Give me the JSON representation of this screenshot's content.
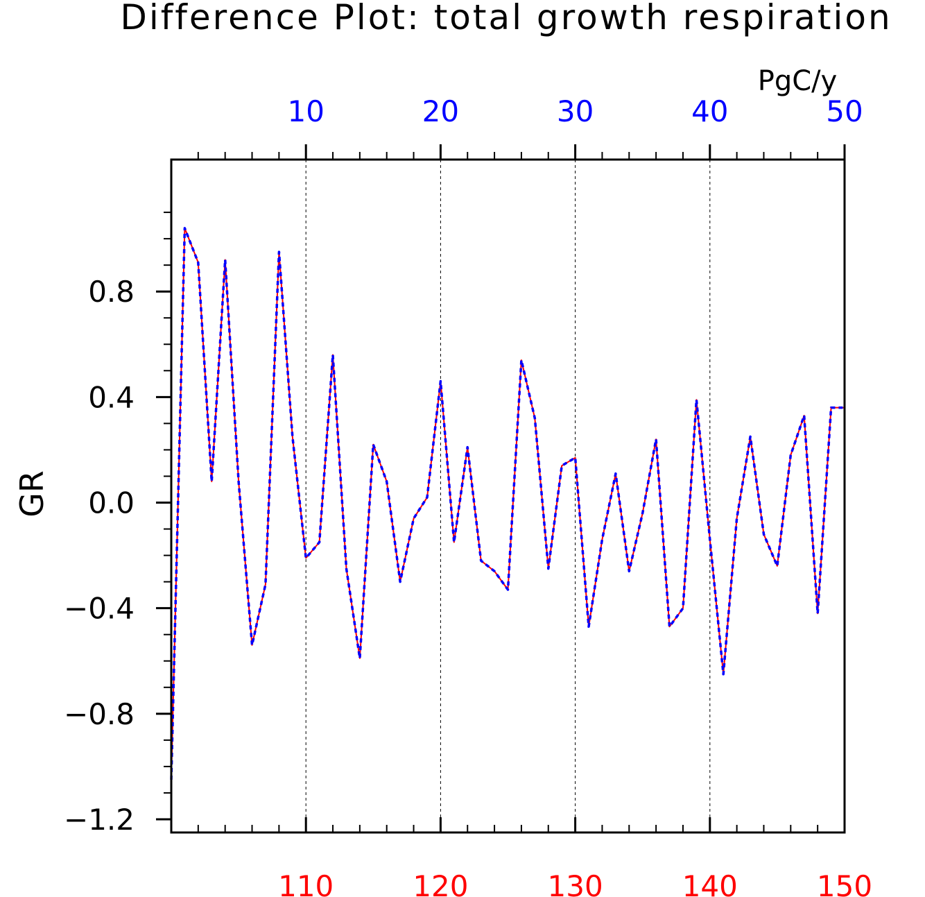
{
  "chart_data": {
    "type": "line",
    "title": "Difference Plot: total growth respiration",
    "units": "PgC/y",
    "ylabel": "GR",
    "xlim": [
      100,
      150
    ],
    "ylim": [
      -1.25,
      1.3
    ],
    "x_bottom": {
      "ticks": [
        110,
        120,
        130,
        140,
        150
      ],
      "tick_labels": [
        "110",
        "120",
        "130",
        "140",
        "150"
      ],
      "color": "#ff0000"
    },
    "x_top": {
      "ticks": [
        10,
        20,
        30,
        40,
        50
      ],
      "tick_labels": [
        "10",
        "20",
        "30",
        "40",
        "50"
      ],
      "color": "#0000ff"
    },
    "y_ticks": [
      0.8,
      0.4,
      0.0,
      -0.4,
      -0.8,
      -1.2
    ],
    "y_tick_labels": [
      "0.8",
      "0.4",
      "0.0",
      "−0.4",
      "−0.8",
      "−1.2"
    ],
    "grid": "vertical dashed at major x ticks",
    "series": [
      {
        "color": "#ff0000",
        "style": "solid",
        "axis": "bottom",
        "x": [
          100,
          101,
          102,
          103,
          104,
          105,
          106,
          107,
          108,
          109,
          110,
          111,
          112,
          113,
          114,
          115,
          116,
          117,
          118,
          119,
          120,
          121,
          122,
          123,
          124,
          125,
          126,
          127,
          128,
          129,
          130,
          131,
          132,
          133,
          134,
          135,
          136,
          137,
          138,
          139,
          140,
          141,
          142,
          143,
          144,
          145,
          146,
          147,
          148,
          149,
          150
        ],
        "values": [
          -1.05,
          1.04,
          0.91,
          0.08,
          0.92,
          0.08,
          -0.54,
          -0.31,
          0.95,
          0.25,
          -0.21,
          -0.15,
          0.56,
          -0.25,
          -0.59,
          0.22,
          0.08,
          -0.3,
          -0.06,
          0.02,
          0.46,
          -0.15,
          0.21,
          -0.22,
          -0.26,
          -0.33,
          0.54,
          0.32,
          -0.25,
          0.14,
          0.17,
          -0.47,
          -0.14,
          0.11,
          -0.26,
          -0.04,
          0.24,
          -0.47,
          -0.4,
          0.39,
          -0.14,
          -0.65,
          -0.06,
          0.25,
          -0.12,
          -0.24,
          0.18,
          0.33,
          -0.42,
          0.36,
          0.36
        ]
      },
      {
        "color": "#0000ff",
        "style": "dashed",
        "axis": "top",
        "x": [
          0,
          1,
          2,
          3,
          4,
          5,
          6,
          7,
          8,
          9,
          10,
          11,
          12,
          13,
          14,
          15,
          16,
          17,
          18,
          19,
          20,
          21,
          22,
          23,
          24,
          25,
          26,
          27,
          28,
          29,
          30,
          31,
          32,
          33,
          34,
          35,
          36,
          37,
          38,
          39,
          40,
          41,
          42,
          43,
          44,
          45,
          46,
          47,
          48,
          49,
          50
        ],
        "values": [
          -1.05,
          1.04,
          0.91,
          0.08,
          0.92,
          0.08,
          -0.54,
          -0.31,
          0.95,
          0.25,
          -0.21,
          -0.15,
          0.56,
          -0.25,
          -0.59,
          0.22,
          0.08,
          -0.3,
          -0.06,
          0.02,
          0.46,
          -0.15,
          0.21,
          -0.22,
          -0.26,
          -0.33,
          0.54,
          0.32,
          -0.25,
          0.14,
          0.17,
          -0.47,
          -0.14,
          0.11,
          -0.26,
          -0.04,
          0.24,
          -0.47,
          -0.4,
          0.39,
          -0.14,
          -0.65,
          -0.06,
          0.25,
          -0.12,
          -0.24,
          0.18,
          0.33,
          -0.42,
          0.36,
          0.36
        ]
      }
    ]
  }
}
